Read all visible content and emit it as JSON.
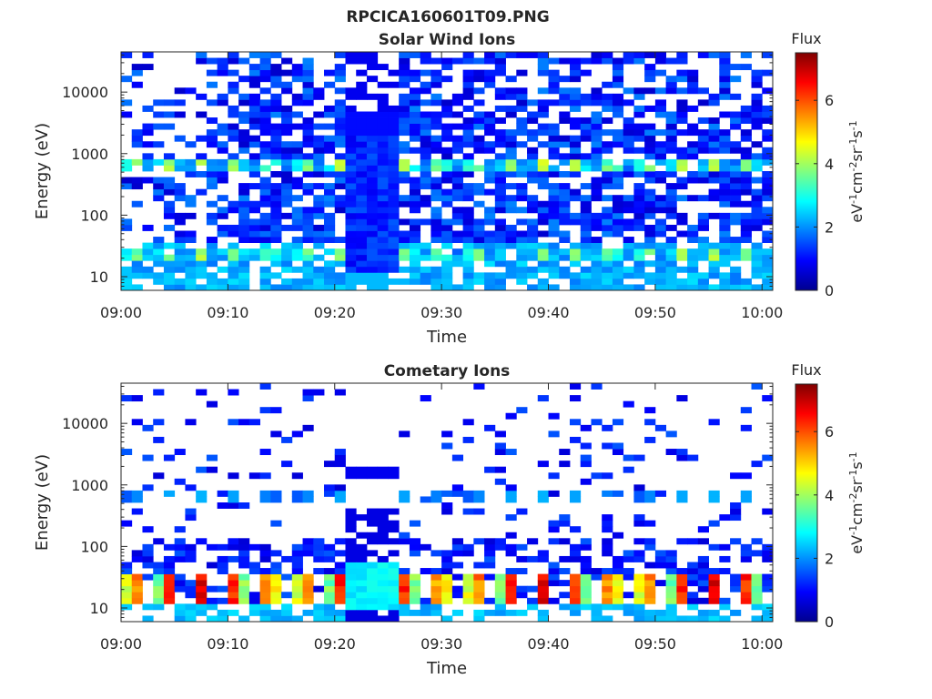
{
  "figure_title": "RPCICA160601T09.PNG",
  "colormap": [
    "#00008f",
    "#0000ff",
    "#0080ff",
    "#00ffff",
    "#80ff80",
    "#ffff00",
    "#ff8000",
    "#ff0000",
    "#800000"
  ],
  "chart_data": [
    {
      "type": "heatmap",
      "title": "Solar Wind Ions",
      "xlabel": "Time",
      "ylabel": "Energy (eV)",
      "x_ticks": [
        "09:00",
        "09:10",
        "09:20",
        "09:30",
        "09:40",
        "09:50",
        "10:00"
      ],
      "xlim_minutes": [
        0,
        61
      ],
      "y_scale": "log",
      "y_ticks": [
        "10",
        "100",
        "1000",
        "10000"
      ],
      "ylim_eV": [
        6,
        45000
      ],
      "colorbar": {
        "title": "Flux",
        "label": "eV-1cm-2sr-1s-1",
        "ticks": [
          "0",
          "2",
          "4",
          "6"
        ],
        "range": [
          0,
          7.5
        ]
      },
      "time_bins": 61,
      "energy_bins": 40,
      "features": {
        "pulse_period_minutes": 3.2,
        "bright_bands_eV": [
          {
            "energy": 22,
            "peak_flux": 3.5
          },
          {
            "energy": 650,
            "peak_flux": 3.8
          }
        ],
        "dense_block": {
          "start_min": 21.5,
          "end_min": 25.5,
          "energy_range_eV": [
            12,
            5000
          ],
          "flux": 0.8
        },
        "sparse_region_end_min": 9
      }
    },
    {
      "type": "heatmap",
      "title": "Cometary Ions",
      "xlabel": "Time",
      "ylabel": "Energy (eV)",
      "x_ticks": [
        "09:00",
        "09:10",
        "09:20",
        "09:30",
        "09:40",
        "09:50",
        "10:00"
      ],
      "xlim_minutes": [
        0,
        61
      ],
      "y_scale": "log",
      "y_ticks": [
        "10",
        "100",
        "1000",
        "10000"
      ],
      "ylim_eV": [
        6,
        45000
      ],
      "colorbar": {
        "title": "Flux",
        "label": "eV-1cm-2sr-1s-1",
        "ticks": [
          "0",
          "2",
          "4",
          "6"
        ],
        "range": [
          0,
          7.5
        ]
      },
      "time_bins": 61,
      "energy_bins": 40,
      "features": {
        "pulse_period_minutes": 3.2,
        "bright_bands_eV": [
          {
            "energy": 20,
            "peak_flux": 5.8
          },
          {
            "energy": 650,
            "peak_flux": 2.5
          }
        ],
        "dense_block": {
          "start_min": 21.5,
          "end_min": 25.5,
          "energy_range_eV": [
            10,
            60
          ],
          "flux": 2.5
        },
        "sparse_region_end_min": 0
      }
    }
  ]
}
